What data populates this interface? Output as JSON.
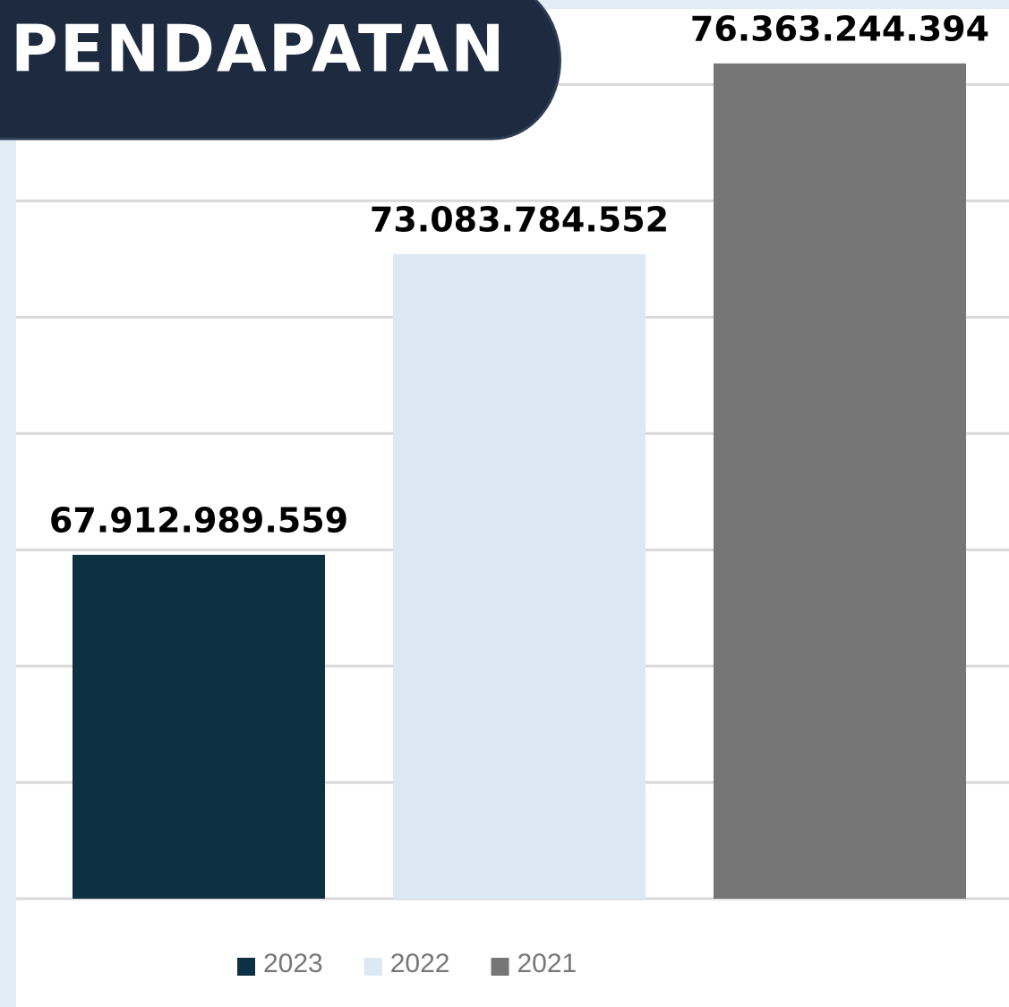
{
  "chart_data": {
    "type": "bar",
    "title": "PENDAPATAN",
    "series": [
      {
        "name": "2023",
        "color": "#0d3042",
        "values": [
          67912989559
        ],
        "value_labels": [
          "67.912.989.559"
        ]
      },
      {
        "name": "2022",
        "color": "#dce9f5",
        "values": [
          73083784552
        ],
        "value_labels": [
          "73.083.784.552"
        ]
      },
      {
        "name": "2021",
        "color": "#767676",
        "values": [
          76363244394
        ],
        "value_labels": [
          "76.363.244.394"
        ]
      }
    ],
    "ylim": [
      62000000000,
      77300000000
    ],
    "yticks": [
      62000000000,
      64000000000,
      66000000000,
      68000000000,
      70000000000,
      72000000000,
      74000000000,
      76000000000
    ],
    "grid": true,
    "legend": "bottom"
  }
}
